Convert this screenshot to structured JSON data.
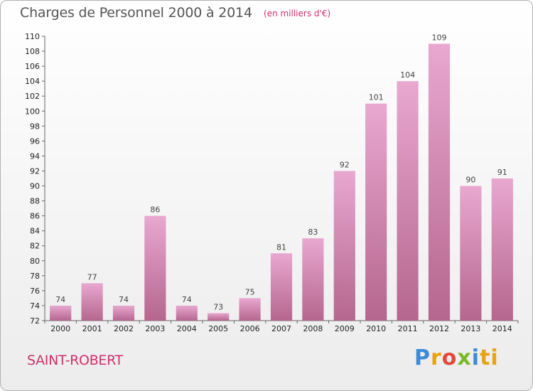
{
  "header": {
    "title": "Charges de Personnel 2000 à 2014",
    "subtitle": "(en milliers d'€)"
  },
  "footer": {
    "commune": "SAINT-ROBERT",
    "logo": [
      "P",
      "r",
      "o",
      "x",
      "i",
      "ti"
    ]
  },
  "colors": {
    "bar_top": "#e8a8d0",
    "bar_bottom": "#b5668e",
    "text_accent": "#d0306a"
  },
  "chart_data": {
    "type": "bar",
    "categories": [
      "2000",
      "2001",
      "2002",
      "2003",
      "2004",
      "2005",
      "2006",
      "2007",
      "2008",
      "2009",
      "2010",
      "2011",
      "2012",
      "2013",
      "2014"
    ],
    "values": [
      74,
      77,
      74,
      86,
      74,
      73,
      75,
      81,
      83,
      92,
      101,
      104,
      109,
      90,
      91
    ],
    "title": "Charges de Personnel 2000 à 2014",
    "subtitle": "(en milliers d'€)",
    "ylim": [
      72,
      110
    ],
    "yticks": [
      72,
      74,
      76,
      78,
      80,
      82,
      84,
      86,
      88,
      90,
      92,
      94,
      96,
      98,
      100,
      102,
      104,
      106,
      108,
      110
    ],
    "grid": false,
    "legend": "none"
  }
}
